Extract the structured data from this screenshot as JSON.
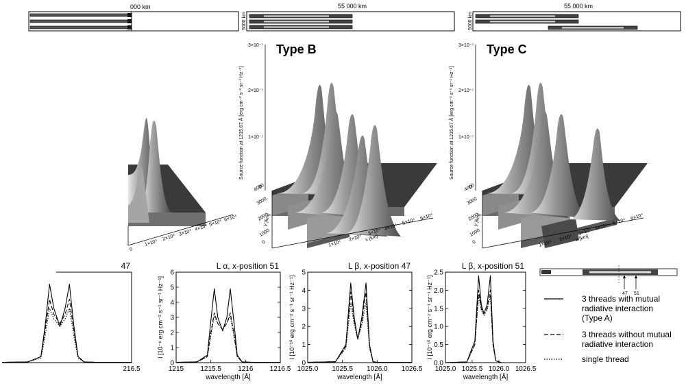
{
  "colors": {
    "surface_light": "#c8c8c8",
    "surface_mid": "#8c8c8c",
    "surface_dark": "#3c3c3c",
    "line": "#000000"
  },
  "top_strips": [
    {
      "scale_label": "000 km",
      "side_label": ""
    },
    {
      "scale_label": "55 000 km",
      "side_label": "5000 km"
    },
    {
      "scale_label": "55 000 km",
      "side_label": "5000 km"
    }
  ],
  "surfaces": [
    {
      "title": "",
      "zlabel": "",
      "ztick_labels": [],
      "ylabel": "",
      "ytick_labels": [],
      "xlabel": "",
      "xtick_labels": [
        "0",
        "1×10⁴",
        "2×10⁴",
        "3×10⁴",
        "4×10⁴",
        "5×10⁴",
        "6×10⁴"
      ]
    },
    {
      "title": "Type B",
      "zlabel": "Source function at 1215.67 Å [erg cm⁻² s⁻¹ sr⁻¹ Hz⁻¹]",
      "ztick_labels": [
        "3×10⁻⁷",
        "2×10⁻⁷",
        "1×10⁻⁷",
        "0"
      ],
      "ylabel": "y [km]",
      "ytick_labels": [
        "0",
        "1000",
        "2000",
        "3000",
        "4000"
      ],
      "xlabel": "x [km]",
      "xtick_labels": [
        "0",
        "1×10⁴",
        "2×10⁴",
        "3×10⁴",
        "4×10⁴",
        "5×10⁴",
        "6×10⁴"
      ]
    },
    {
      "title": "Type C",
      "zlabel": "Source function at 1215.67 Å [erg cm⁻² s⁻¹ sr⁻¹ Hz⁻¹]",
      "ztick_labels": [
        "3×10⁻⁷",
        "2×10⁻⁷",
        "1×10⁻⁷",
        "0"
      ],
      "ylabel": "y [km]",
      "ytick_labels": [
        "0",
        "1000",
        "2000",
        "3000",
        "4000"
      ],
      "xlabel": "x [km]",
      "xtick_labels": [
        "0",
        "1×10⁴",
        "2×10⁴",
        "3×10⁴",
        "4×10⁴",
        "5×10⁴",
        "6×10⁴"
      ]
    }
  ],
  "chart_data": [
    {
      "type": "line",
      "title": "47",
      "xlabel": "",
      "ylabel": "",
      "xlim": [
        1215.0,
        1216.5
      ],
      "ylim": [
        0,
        6
      ],
      "xtick_labels": [
        "216.5"
      ],
      "ytick_labels": [],
      "x": [
        1215.0,
        1215.3,
        1215.45,
        1215.5,
        1215.55,
        1215.6,
        1215.67,
        1215.73,
        1215.78,
        1215.83,
        1215.88,
        1215.95,
        1216.1,
        1216.5
      ],
      "series": [
        {
          "name": "3 threads with mutual radiative interaction (Type A)",
          "values": [
            0.02,
            0.05,
            0.4,
            2.5,
            5.2,
            3.6,
            2.4,
            3.6,
            5.2,
            2.5,
            0.4,
            0.05,
            0.02,
            0.02
          ]
        },
        {
          "name": "3 threads without mutual radiative interaction",
          "values": [
            0.02,
            0.05,
            0.4,
            2.2,
            4.2,
            3.2,
            2.6,
            3.2,
            4.2,
            2.2,
            0.4,
            0.05,
            0.02,
            0.02
          ]
        },
        {
          "name": "single thread",
          "values": [
            0.02,
            0.05,
            0.3,
            1.8,
            3.6,
            2.9,
            2.4,
            2.9,
            3.6,
            1.8,
            0.3,
            0.05,
            0.02,
            0.02
          ]
        }
      ]
    },
    {
      "type": "line",
      "title": "L α, x-position   51",
      "xlabel": "wavelength [Å]",
      "ylabel": "I [10⁻⁸ erg cm⁻² s⁻¹ sr⁻¹ Hz⁻¹]",
      "xlim": [
        1215.0,
        1216.5
      ],
      "ylim": [
        0,
        6
      ],
      "xtick_labels": [
        "1215",
        "1215.5",
        "1216",
        "1216.5"
      ],
      "ytick_labels": [
        "0",
        "1",
        "2",
        "3",
        "4",
        "5",
        "6"
      ],
      "x": [
        1215.0,
        1215.3,
        1215.45,
        1215.5,
        1215.55,
        1215.6,
        1215.67,
        1215.73,
        1215.78,
        1215.83,
        1215.88,
        1215.95,
        1216.1,
        1216.5
      ],
      "series": [
        {
          "name": "3 threads with mutual radiative interaction (Type A)",
          "values": [
            0.02,
            0.05,
            0.5,
            2.8,
            4.9,
            3.0,
            2.1,
            3.0,
            4.9,
            2.8,
            0.5,
            0.05,
            0.02,
            0.02
          ]
        },
        {
          "name": "3 threads without mutual radiative interaction",
          "values": [
            0.02,
            0.05,
            0.4,
            2.0,
            3.3,
            2.6,
            2.2,
            2.6,
            3.3,
            2.0,
            0.4,
            0.05,
            0.02,
            0.02
          ]
        },
        {
          "name": "single thread",
          "values": [
            0.02,
            0.05,
            0.4,
            1.8,
            3.1,
            2.6,
            2.2,
            2.6,
            3.1,
            1.8,
            0.4,
            0.05,
            0.02,
            0.02
          ]
        }
      ]
    },
    {
      "type": "line",
      "title": "L β, x-position   47",
      "xlabel": "wavelength [Å]",
      "ylabel": "I [10⁻¹⁰ erg cm⁻² s⁻¹ sr⁻¹ Hz⁻¹]",
      "xlim": [
        1025.0,
        1026.5
      ],
      "ylim": [
        0,
        5
      ],
      "xtick_labels": [
        "1025.0",
        "1025.5",
        "1026.0",
        "1026.5"
      ],
      "ytick_labels": [
        "0",
        "1",
        "2",
        "3",
        "4",
        "5"
      ],
      "x": [
        1025.0,
        1025.4,
        1025.55,
        1025.62,
        1025.67,
        1025.72,
        1025.78,
        1025.84,
        1025.89,
        1025.94,
        1026.01,
        1026.15,
        1026.5
      ],
      "series": [
        {
          "name": "3 threads with mutual radiative interaction (Type A)",
          "values": [
            0.02,
            0.05,
            1.0,
            4.4,
            2.5,
            1.3,
            2.5,
            4.4,
            1.0,
            0.05,
            0.02,
            0.02,
            0.02
          ]
        },
        {
          "name": "3 threads without mutual radiative interaction",
          "values": [
            0.02,
            0.05,
            0.9,
            3.9,
            2.3,
            1.3,
            2.3,
            3.9,
            0.9,
            0.05,
            0.02,
            0.02,
            0.02
          ]
        },
        {
          "name": "single thread",
          "values": [
            0.02,
            0.05,
            0.8,
            3.3,
            2.1,
            1.3,
            2.1,
            3.3,
            0.8,
            0.05,
            0.02,
            0.02,
            0.02
          ]
        }
      ]
    },
    {
      "type": "line",
      "title": "L β, x-position   51",
      "xlabel": "wavelength [Å]",
      "ylabel": "I [10⁻¹⁰ erg cm⁻² s⁻¹ sr⁻¹ Hz⁻¹]",
      "xlim": [
        1025.0,
        1026.5
      ],
      "ylim": [
        0,
        2.5
      ],
      "xtick_labels": [
        "1025.0",
        "1025.5",
        "1026.0",
        "1026.5"
      ],
      "ytick_labels": [
        "0.0",
        "0.5",
        "1.0",
        "1.5",
        "2.0",
        "2.5"
      ],
      "x": [
        1025.0,
        1025.4,
        1025.55,
        1025.62,
        1025.67,
        1025.72,
        1025.78,
        1025.84,
        1025.89,
        1025.94,
        1026.05,
        1026.5
      ],
      "series": [
        {
          "name": "3 threads with mutual radiative interaction (Type A)",
          "values": [
            0.0,
            0.02,
            0.6,
            2.4,
            1.6,
            1.35,
            1.6,
            2.4,
            0.6,
            0.05,
            0.0,
            0.0
          ]
        },
        {
          "name": "3 threads without mutual radiative interaction",
          "values": [
            0.0,
            0.02,
            0.5,
            2.0,
            1.5,
            1.35,
            1.5,
            2.0,
            0.5,
            0.05,
            0.0,
            0.0
          ]
        },
        {
          "name": "single thread",
          "values": [
            0.0,
            0.02,
            0.5,
            1.85,
            1.45,
            1.3,
            1.45,
            1.85,
            0.5,
            0.05,
            0.0,
            0.0
          ]
        }
      ]
    }
  ],
  "legend": {
    "entries": [
      {
        "style": "solid",
        "lines": [
          "3 threads with mutual",
          "radiative interaction",
          "(Type A)"
        ]
      },
      {
        "style": "dashed",
        "lines": [
          "3 threads without mutual",
          "radiative interaction"
        ]
      },
      {
        "style": "dotted",
        "lines": [
          "single thread"
        ]
      }
    ],
    "marker_labels": [
      "47",
      "51"
    ]
  }
}
